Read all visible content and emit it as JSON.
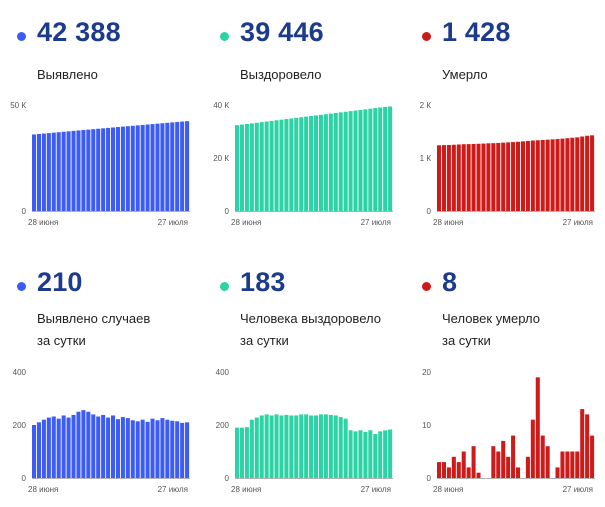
{
  "colors": {
    "blue": "#3d5cf5",
    "teal": "#2cd4a5",
    "red": "#cf1a1a"
  },
  "panels": [
    {
      "number": "42 388",
      "caption_lines": [
        "Выявлено"
      ],
      "color": "#3d5cf5",
      "chart_data": {
        "type": "bar",
        "ylim": [
          0,
          50000
        ],
        "yticks": [
          0,
          50000
        ],
        "ytick_labels": [
          "0",
          "50 К"
        ],
        "x_start_label": "28 июня",
        "x_end_label": "27 июля",
        "values": [
          36120,
          36330,
          36540,
          36750,
          36960,
          37170,
          37380,
          37590,
          37800,
          38000,
          38200,
          38400,
          38600,
          38800,
          39000,
          39200,
          39400,
          39600,
          39800,
          40000,
          40200,
          40400,
          40600,
          40800,
          41000,
          41200,
          41400,
          41600,
          41800,
          42000,
          42180,
          42388
        ]
      }
    },
    {
      "number": "39 446",
      "caption_lines": [
        "Выздоровело"
      ],
      "color": "#2cd4a5",
      "chart_data": {
        "type": "bar",
        "ylim": [
          0,
          40000
        ],
        "yticks": [
          0,
          20000,
          40000
        ],
        "ytick_labels": [
          "0",
          "20 К",
          "40 К"
        ],
        "x_start_label": "28 июня",
        "x_end_label": "27 июля",
        "values": [
          32400,
          32620,
          32850,
          33080,
          33310,
          33540,
          33770,
          34000,
          34230,
          34460,
          34690,
          34920,
          35150,
          35380,
          35610,
          35840,
          36070,
          36300,
          36530,
          36760,
          36990,
          37220,
          37450,
          37680,
          37910,
          38140,
          38370,
          38600,
          38830,
          39060,
          39263,
          39446
        ]
      }
    },
    {
      "number": "1 428",
      "caption_lines": [
        "Умерло"
      ],
      "color": "#cf1a1a",
      "chart_data": {
        "type": "bar",
        "ylim": [
          0,
          2000
        ],
        "yticks": [
          0,
          1000,
          2000
        ],
        "ytick_labels": [
          "0",
          "1 К",
          "2 К"
        ],
        "x_start_label": "28 июня",
        "x_end_label": "27 июля",
        "values": [
          1240,
          1243,
          1246,
          1250,
          1255,
          1260,
          1262,
          1265,
          1268,
          1272,
          1277,
          1280,
          1284,
          1290,
          1295,
          1300,
          1306,
          1314,
          1322,
          1330,
          1335,
          1340,
          1346,
          1352,
          1358,
          1366,
          1374,
          1382,
          1390,
          1405,
          1420,
          1428
        ]
      }
    },
    {
      "number": "210",
      "caption_lines": [
        "Выявлено случаев",
        "за сутки"
      ],
      "color": "#3d5cf5",
      "chart_data": {
        "type": "bar",
        "ylim": [
          0,
          400
        ],
        "yticks": [
          0,
          200,
          400
        ],
        "ytick_labels": [
          "0",
          "200",
          "400"
        ],
        "x_start_label": "28 июня",
        "x_end_label": "27 июля",
        "values": [
          200,
          210,
          220,
          228,
          232,
          224,
          236,
          228,
          238,
          250,
          256,
          250,
          240,
          232,
          238,
          228,
          236,
          222,
          230,
          226,
          218,
          214,
          220,
          212,
          224,
          218,
          226,
          220,
          216,
          214,
          208,
          210
        ]
      }
    },
    {
      "number": "183",
      "caption_lines": [
        "Человека выздоровело",
        "за сутки"
      ],
      "color": "#2cd4a5",
      "chart_data": {
        "type": "bar",
        "ylim": [
          0,
          400
        ],
        "yticks": [
          0,
          200,
          400
        ],
        "ytick_labels": [
          "0",
          "200",
          "400"
        ],
        "x_start_label": "28 июня",
        "x_end_label": "27 июля",
        "values": [
          190,
          190,
          192,
          220,
          228,
          236,
          240,
          236,
          240,
          236,
          238,
          236,
          236,
          240,
          240,
          236,
          236,
          240,
          240,
          238,
          236,
          230,
          224,
          180,
          176,
          180,
          174,
          180,
          166,
          176,
          180,
          183
        ]
      }
    },
    {
      "number": "8",
      "caption_lines": [
        "Человек умерло",
        "за сутки"
      ],
      "color": "#cf1a1a",
      "chart_data": {
        "type": "bar",
        "ylim": [
          0,
          20
        ],
        "yticks": [
          0,
          10,
          20
        ],
        "ytick_labels": [
          "0",
          "10",
          "20"
        ],
        "x_start_label": "28 июня",
        "x_end_label": "27 июля",
        "values": [
          3,
          3,
          2,
          4,
          3,
          5,
          2,
          6,
          1,
          0,
          0,
          6,
          5,
          7,
          4,
          8,
          2,
          0,
          4,
          11,
          19,
          8,
          6,
          0,
          2,
          5,
          5,
          5,
          5,
          13,
          12,
          8
        ]
      }
    }
  ]
}
